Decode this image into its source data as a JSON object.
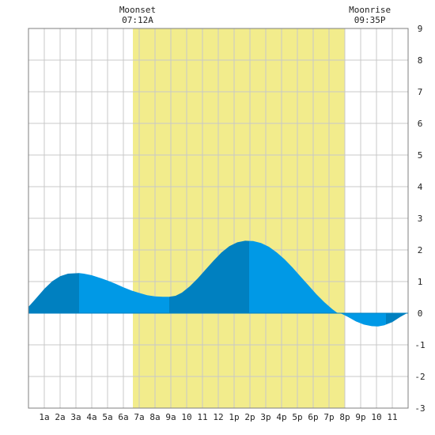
{
  "chart_data": {
    "type": "area",
    "x_unit": "hour",
    "x_range": [
      0,
      24
    ],
    "ylim": [
      -3,
      9
    ],
    "y_ticks": [
      "-3",
      "-2",
      "-1",
      "0",
      "1",
      "2",
      "3",
      "4",
      "5",
      "6",
      "7",
      "8",
      "9"
    ],
    "x_ticks": [
      {
        "hour": 1,
        "label": "1a"
      },
      {
        "hour": 2,
        "label": "2a"
      },
      {
        "hour": 3,
        "label": "3a"
      },
      {
        "hour": 4,
        "label": "4a"
      },
      {
        "hour": 5,
        "label": "5a"
      },
      {
        "hour": 6,
        "label": "6a"
      },
      {
        "hour": 7,
        "label": "7a"
      },
      {
        "hour": 8,
        "label": "8a"
      },
      {
        "hour": 9,
        "label": "9a"
      },
      {
        "hour": 10,
        "label": "10"
      },
      {
        "hour": 11,
        "label": "11"
      },
      {
        "hour": 12,
        "label": "12"
      },
      {
        "hour": 13,
        "label": "1p"
      },
      {
        "hour": 14,
        "label": "2p"
      },
      {
        "hour": 15,
        "label": "3p"
      },
      {
        "hour": 16,
        "label": "4p"
      },
      {
        "hour": 17,
        "label": "5p"
      },
      {
        "hour": 18,
        "label": "6p"
      },
      {
        "hour": 19,
        "label": "7p"
      },
      {
        "hour": 20,
        "label": "8p"
      },
      {
        "hour": 21,
        "label": "9p"
      },
      {
        "hour": 22,
        "label": "10"
      },
      {
        "hour": 23,
        "label": "11"
      }
    ],
    "tide_points": [
      {
        "x": 0.0,
        "y": 0.2
      },
      {
        "x": 0.5,
        "y": 0.48
      },
      {
        "x": 1.0,
        "y": 0.77
      },
      {
        "x": 1.5,
        "y": 1.01
      },
      {
        "x": 2.0,
        "y": 1.17
      },
      {
        "x": 2.5,
        "y": 1.25
      },
      {
        "x": 3.2,
        "y": 1.27
      },
      {
        "x": 3.5,
        "y": 1.25
      },
      {
        "x": 4.0,
        "y": 1.2
      },
      {
        "x": 4.5,
        "y": 1.12
      },
      {
        "x": 5.0,
        "y": 1.03
      },
      {
        "x": 5.5,
        "y": 0.93
      },
      {
        "x": 6.0,
        "y": 0.82
      },
      {
        "x": 6.5,
        "y": 0.72
      },
      {
        "x": 7.0,
        "y": 0.64
      },
      {
        "x": 7.5,
        "y": 0.57
      },
      {
        "x": 8.0,
        "y": 0.53
      },
      {
        "x": 8.5,
        "y": 0.52
      },
      {
        "x": 8.9,
        "y": 0.52
      },
      {
        "x": 9.3,
        "y": 0.55
      },
      {
        "x": 9.7,
        "y": 0.65
      },
      {
        "x": 10.2,
        "y": 0.85
      },
      {
        "x": 10.7,
        "y": 1.1
      },
      {
        "x": 11.2,
        "y": 1.38
      },
      {
        "x": 11.7,
        "y": 1.66
      },
      {
        "x": 12.2,
        "y": 1.92
      },
      {
        "x": 12.7,
        "y": 2.12
      },
      {
        "x": 13.2,
        "y": 2.24
      },
      {
        "x": 13.7,
        "y": 2.29
      },
      {
        "x": 14.2,
        "y": 2.28
      },
      {
        "x": 14.7,
        "y": 2.22
      },
      {
        "x": 15.2,
        "y": 2.1
      },
      {
        "x": 15.7,
        "y": 1.92
      },
      {
        "x": 16.2,
        "y": 1.7
      },
      {
        "x": 16.7,
        "y": 1.44
      },
      {
        "x": 17.2,
        "y": 1.16
      },
      {
        "x": 17.7,
        "y": 0.88
      },
      {
        "x": 18.2,
        "y": 0.6
      },
      {
        "x": 18.7,
        "y": 0.35
      },
      {
        "x": 19.2,
        "y": 0.13
      },
      {
        "x": 19.5,
        "y": 0.02
      },
      {
        "x": 19.8,
        "y": -0.02
      },
      {
        "x": 20.2,
        "y": -0.12
      },
      {
        "x": 20.7,
        "y": -0.26
      },
      {
        "x": 21.2,
        "y": -0.36
      },
      {
        "x": 21.7,
        "y": -0.41
      },
      {
        "x": 22.1,
        "y": -0.42
      },
      {
        "x": 22.5,
        "y": -0.38
      },
      {
        "x": 23.0,
        "y": -0.28
      },
      {
        "x": 23.5,
        "y": -0.12
      },
      {
        "x": 24.0,
        "y": 0.02
      }
    ],
    "tide_segments": [
      {
        "from": 0.0,
        "to": 3.2,
        "shade": "dark"
      },
      {
        "from": 3.2,
        "to": 8.9,
        "shade": "light"
      },
      {
        "from": 8.9,
        "to": 13.95,
        "shade": "dark"
      },
      {
        "from": 13.95,
        "to": 19.8,
        "shade": "light"
      },
      {
        "from": 19.8,
        "to": 22.6,
        "shade": "light"
      },
      {
        "from": 22.6,
        "to": 24.0,
        "shade": "dark"
      }
    ],
    "daylight": {
      "from": 6.6,
      "to": 20.0
    },
    "events": [
      {
        "label": "Moonset",
        "time": "07:12A",
        "hour": 7.2
      },
      {
        "label": "Moonrise",
        "time": "09:35P",
        "hour": 21.58
      }
    ],
    "grid": true
  },
  "colors": {
    "tide_dark": "#0080c0",
    "tide_light": "#0099e6",
    "daylight": "#f2ec8c",
    "grid": "#c8c8c8",
    "frame": "#7f7f7f"
  }
}
